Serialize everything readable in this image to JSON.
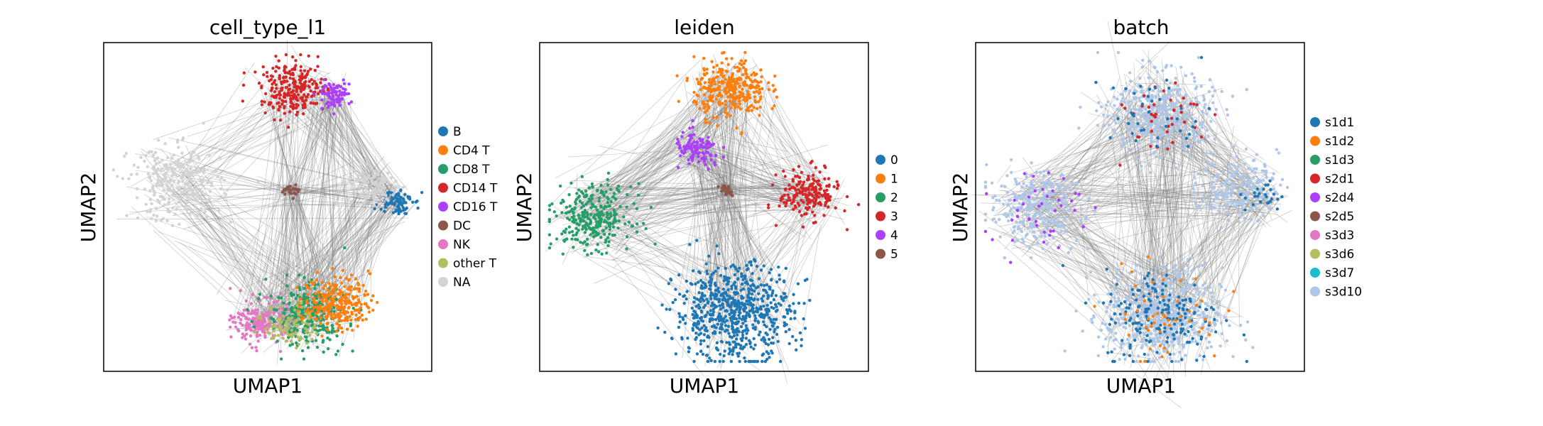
{
  "chart_data": [
    {
      "type": "scatter",
      "title": "cell_type_l1",
      "xlabel": "UMAP1",
      "ylabel": "UMAP2",
      "grid": false,
      "legend_position": "right",
      "legend": [
        {
          "label": "B",
          "color": "#1f77b4"
        },
        {
          "label": "CD4 T",
          "color": "#ff7f0e"
        },
        {
          "label": "CD8 T",
          "color": "#279e68"
        },
        {
          "label": "CD14 T",
          "color": "#d62728"
        },
        {
          "label": "CD16 T",
          "color": "#aa40fc"
        },
        {
          "label": "DC",
          "color": "#8c564b"
        },
        {
          "label": "NK",
          "color": "#e377c2"
        },
        {
          "label": "other T",
          "color": "#b5bd61"
        },
        {
          "label": "NA",
          "color": "#d3d3d3"
        }
      ],
      "clusters": [
        {
          "category": "NA",
          "cx": 0.22,
          "cy": 0.57,
          "spread": 0.07,
          "n": 260
        },
        {
          "category": "CD14 T",
          "cx": 0.58,
          "cy": 0.86,
          "spread": 0.05,
          "n": 260
        },
        {
          "category": "CD16 T",
          "cx": 0.7,
          "cy": 0.84,
          "spread": 0.025,
          "n": 80
        },
        {
          "category": "B",
          "cx": 0.89,
          "cy": 0.52,
          "spread": 0.025,
          "n": 90
        },
        {
          "category": "NA",
          "cx": 0.81,
          "cy": 0.56,
          "spread": 0.04,
          "n": 90
        },
        {
          "category": "DC",
          "cx": 0.57,
          "cy": 0.55,
          "spread": 0.012,
          "n": 25
        },
        {
          "category": "NK",
          "cx": 0.48,
          "cy": 0.15,
          "spread": 0.04,
          "n": 200
        },
        {
          "category": "CD8 T",
          "cx": 0.62,
          "cy": 0.17,
          "spread": 0.06,
          "n": 300
        },
        {
          "category": "CD4 T",
          "cx": 0.71,
          "cy": 0.21,
          "spread": 0.05,
          "n": 250
        },
        {
          "category": "other T",
          "cx": 0.57,
          "cy": 0.14,
          "spread": 0.04,
          "n": 90
        }
      ]
    },
    {
      "type": "scatter",
      "title": "leiden",
      "xlabel": "UMAP1",
      "ylabel": "UMAP2",
      "grid": false,
      "legend_position": "right",
      "legend": [
        {
          "label": "0",
          "color": "#1f77b4"
        },
        {
          "label": "1",
          "color": "#ff7f0e"
        },
        {
          "label": "2",
          "color": "#279e68"
        },
        {
          "label": "3",
          "color": "#d62728"
        },
        {
          "label": "4",
          "color": "#aa40fc"
        },
        {
          "label": "5",
          "color": "#8c564b"
        }
      ],
      "clusters": [
        {
          "category": "1",
          "cx": 0.58,
          "cy": 0.86,
          "spread": 0.055,
          "n": 320
        },
        {
          "category": "4",
          "cx": 0.48,
          "cy": 0.67,
          "spread": 0.035,
          "n": 110
        },
        {
          "category": "2",
          "cx": 0.16,
          "cy": 0.47,
          "spread": 0.06,
          "n": 300
        },
        {
          "category": "3",
          "cx": 0.82,
          "cy": 0.54,
          "spread": 0.045,
          "n": 200
        },
        {
          "category": "5",
          "cx": 0.57,
          "cy": 0.55,
          "spread": 0.012,
          "n": 25
        },
        {
          "category": "0",
          "cx": 0.59,
          "cy": 0.18,
          "spread": 0.09,
          "n": 700
        }
      ]
    },
    {
      "type": "scatter",
      "title": "batch",
      "xlabel": "UMAP1",
      "ylabel": "UMAP2",
      "grid": false,
      "legend_position": "right",
      "legend": [
        {
          "label": "s1d1",
          "color": "#1f77b4"
        },
        {
          "label": "s1d2",
          "color": "#ff7f0e"
        },
        {
          "label": "s1d3",
          "color": "#279e68"
        },
        {
          "label": "s2d1",
          "color": "#d62728"
        },
        {
          "label": "s2d4",
          "color": "#aa40fc"
        },
        {
          "label": "s2d5",
          "color": "#8c564b"
        },
        {
          "label": "s3d3",
          "color": "#e377c2"
        },
        {
          "label": "s3d6",
          "color": "#b5bd61"
        },
        {
          "label": "s3d7",
          "color": "#17becf"
        },
        {
          "label": "s3d10",
          "color": "#aec7e8"
        }
      ],
      "clusters": [
        {
          "category": "s3d10",
          "cx": 0.56,
          "cy": 0.78,
          "spread": 0.08,
          "n": 400
        },
        {
          "category": "s3d10",
          "cx": 0.18,
          "cy": 0.5,
          "spread": 0.07,
          "n": 300
        },
        {
          "category": "s3d10",
          "cx": 0.8,
          "cy": 0.56,
          "spread": 0.06,
          "n": 200
        },
        {
          "category": "s3d10",
          "cx": 0.57,
          "cy": 0.17,
          "spread": 0.09,
          "n": 550
        },
        {
          "category": "s1d1",
          "cx": 0.57,
          "cy": 0.17,
          "spread": 0.09,
          "n": 180
        },
        {
          "category": "s1d2",
          "cx": 0.57,
          "cy": 0.17,
          "spread": 0.09,
          "n": 50
        },
        {
          "category": "s2d1",
          "cx": 0.56,
          "cy": 0.78,
          "spread": 0.08,
          "n": 40
        },
        {
          "category": "s2d4",
          "cx": 0.18,
          "cy": 0.5,
          "spread": 0.07,
          "n": 40
        },
        {
          "category": "s1d1",
          "cx": 0.56,
          "cy": 0.78,
          "spread": 0.08,
          "n": 40
        },
        {
          "category": "s1d1",
          "cx": 0.88,
          "cy": 0.53,
          "spread": 0.03,
          "n": 25
        }
      ]
    }
  ]
}
